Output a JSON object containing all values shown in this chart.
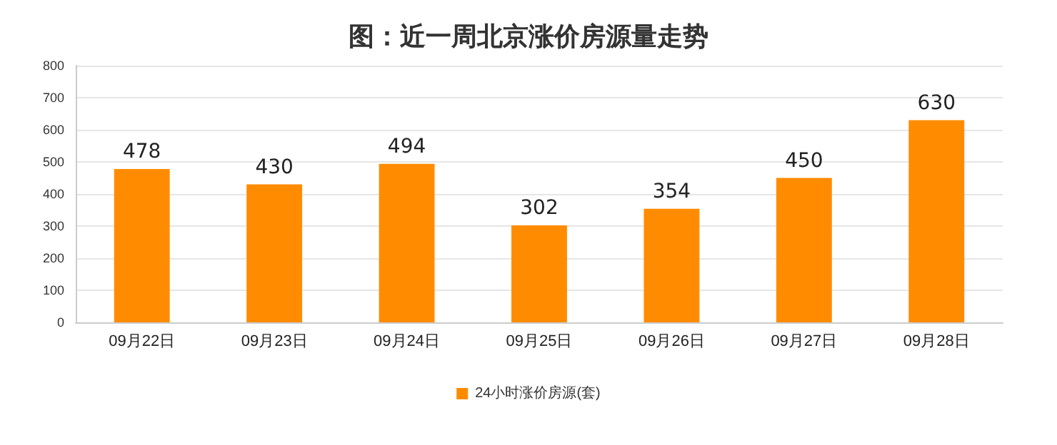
{
  "chart_data": {
    "type": "bar",
    "title": "图：近一周北京涨价房源量走势",
    "categories": [
      "09月22日",
      "09月23日",
      "09月24日",
      "09月25日",
      "09月26日",
      "09月27日",
      "09月28日"
    ],
    "series": [
      {
        "name": "24小时涨价房源(套)",
        "color": "#ff8c00",
        "values": [
          478,
          430,
          494,
          302,
          354,
          450,
          630
        ]
      }
    ],
    "ylim": [
      0,
      800
    ],
    "yticks": [
      0,
      100,
      200,
      300,
      400,
      500,
      600,
      700,
      800
    ],
    "grid": "y",
    "legend": "bottom",
    "data_labels": true
  }
}
